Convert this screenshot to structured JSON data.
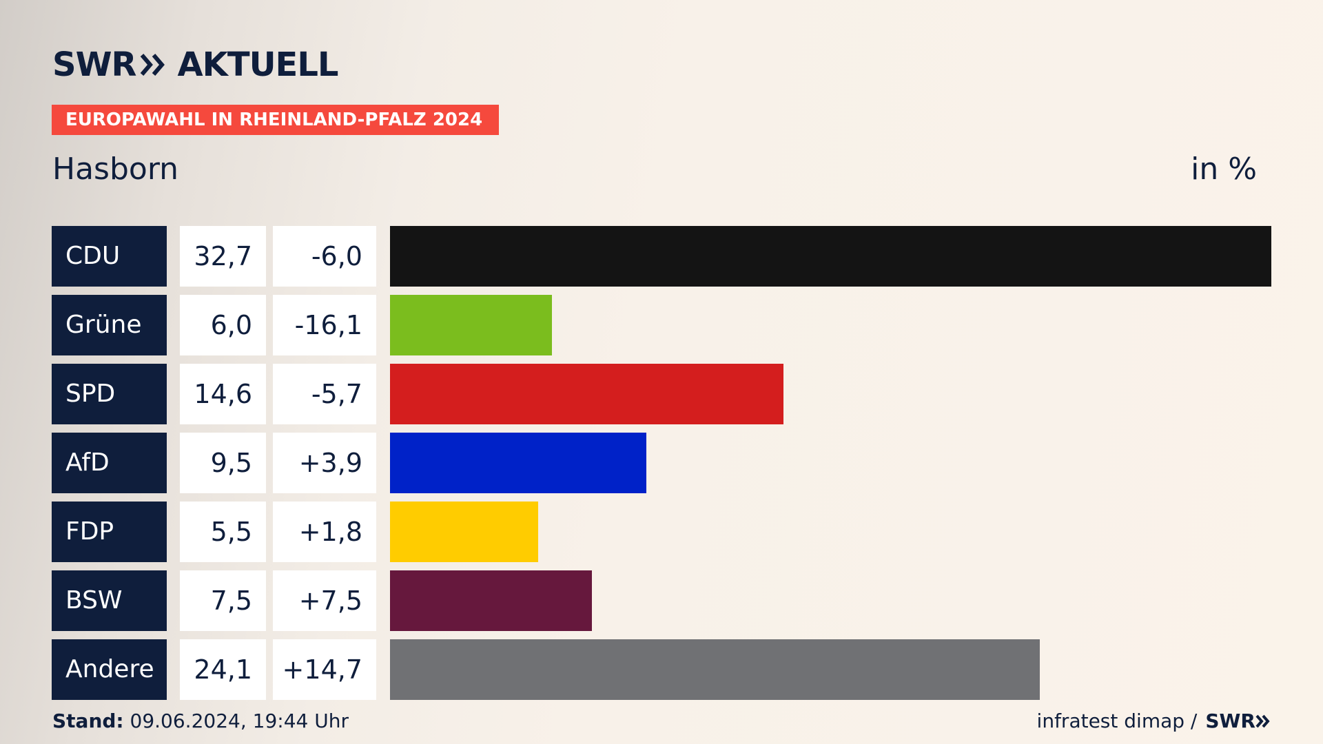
{
  "brand": {
    "swr": "SWR",
    "aktuell": "AKTUELL"
  },
  "header": {
    "badge": "EUROPAWAHL IN RHEINLAND-PFALZ 2024",
    "region": "Hasborn",
    "unit": "in %"
  },
  "colors": {
    "navy": "#0f1e3c",
    "badge": "#f5493d"
  },
  "chart_data": {
    "type": "bar",
    "orientation": "horizontal",
    "categories": [
      "CDU",
      "Grüne",
      "SPD",
      "AfD",
      "FDP",
      "BSW",
      "Andere"
    ],
    "values": [
      32.7,
      6.0,
      14.6,
      9.5,
      5.5,
      7.5,
      24.1
    ],
    "value_labels": [
      "32,7",
      "6,0",
      "14,6",
      "9,5",
      "5,5",
      "7,5",
      "24,1"
    ],
    "diff_labels": [
      "-6,0",
      "-16,1",
      "-5,7",
      "+3,9",
      "+1,8",
      "+7,5",
      "+14,7"
    ],
    "colors": [
      "#141414",
      "#7bbd1e",
      "#d41e1e",
      "#0022c8",
      "#ffcc00",
      "#66183d",
      "#707174"
    ]
  },
  "footer": {
    "stand_label": "Stand:",
    "stand_value": " 09.06.2024, 19:44 Uhr",
    "source": "infratest dimap /",
    "swr": "SWR"
  }
}
